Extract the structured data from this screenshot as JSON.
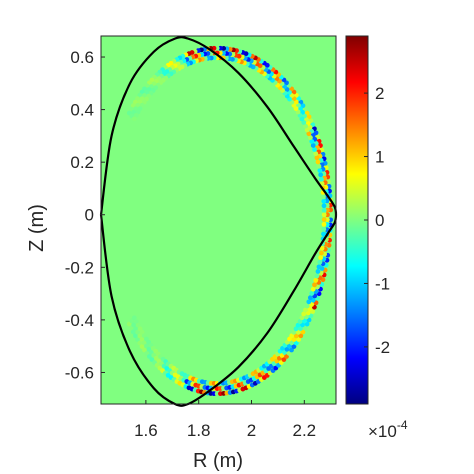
{
  "chart_data": {
    "type": "heatmap",
    "title": "",
    "xlabel": "R (m)",
    "ylabel": "Z (m)",
    "xlim": [
      1.43,
      2.32
    ],
    "ylim": [
      -0.72,
      0.68
    ],
    "xticks": [
      1.6,
      1.8,
      2.0,
      2.2
    ],
    "xtick_labels": [
      "1.6",
      "1.8",
      "2",
      "2.2"
    ],
    "yticks": [
      0.6,
      0.4,
      0.2,
      0.0,
      -0.2,
      -0.4,
      -0.6
    ],
    "ytick_labels": [
      "0.6",
      "0.4",
      "0.2",
      "0",
      "-0.2",
      "-0.4",
      "-0.6"
    ],
    "grid": false,
    "colormap": "jet",
    "background_value": 0,
    "colorbar": {
      "placement": "right",
      "clim": [
        -2.9,
        2.9
      ],
      "ticks": [
        2,
        1,
        0,
        -1,
        -2
      ],
      "tick_labels": [
        "2",
        "1",
        "0",
        "-1",
        "-2"
      ],
      "multiplier_base": "×10",
      "multiplier_exponent": "-4"
    },
    "boundary": {
      "color": "#000000",
      "R": [
        1.43,
        1.47,
        1.54,
        1.63,
        1.71,
        1.76,
        1.84,
        1.95,
        2.06,
        2.16,
        2.24,
        2.29,
        2.315,
        2.32,
        2.315,
        2.29,
        2.24,
        2.16,
        2.06,
        1.95,
        1.84,
        1.76,
        1.71,
        1.63,
        1.54,
        1.47,
        1.43
      ],
      "Z": [
        0.0,
        0.3,
        0.5,
        0.62,
        0.67,
        0.67,
        0.63,
        0.54,
        0.41,
        0.26,
        0.14,
        0.07,
        0.03,
        0.0,
        -0.03,
        -0.07,
        -0.15,
        -0.29,
        -0.45,
        -0.58,
        -0.67,
        -0.72,
        -0.72,
        -0.66,
        -0.52,
        -0.31,
        0.0
      ]
    },
    "perturbation": {
      "max_amplitude": 2.9,
      "edge_band_width": 0.1,
      "poloidal_wavenumber": 32
    }
  }
}
